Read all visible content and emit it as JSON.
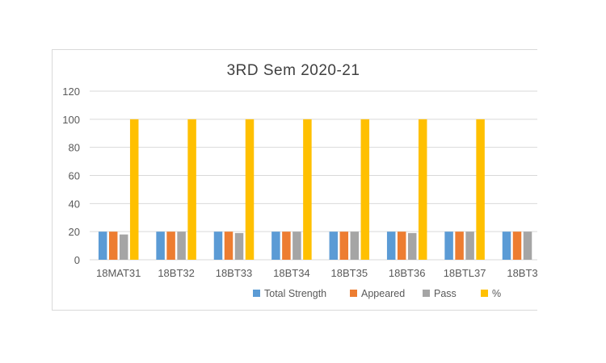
{
  "chart_data": {
    "type": "bar",
    "title": "3RD  Sem  2020-21",
    "xlabel": "",
    "ylabel": "",
    "ylim": [
      0,
      120
    ],
    "yticks": [
      0,
      20,
      40,
      60,
      80,
      100,
      120
    ],
    "grid": true,
    "legend_position": "bottom",
    "categories": [
      "18MAT31",
      "18BT32",
      "18BT33",
      "18BT34",
      "18BT35",
      "18BT36",
      "18BTL37",
      "18BT3"
    ],
    "series": [
      {
        "name": "Total Strength",
        "color": "#5b9bd5",
        "values": [
          20,
          20,
          20,
          20,
          20,
          20,
          20,
          20
        ]
      },
      {
        "name": "Appeared",
        "color": "#ed7d31",
        "values": [
          20,
          20,
          20,
          20,
          20,
          20,
          20,
          20
        ]
      },
      {
        "name": "Pass",
        "color": "#a5a5a5",
        "values": [
          18,
          20,
          19,
          20,
          20,
          19,
          20,
          20
        ]
      },
      {
        "name": "%",
        "color": "#ffc000",
        "values": [
          100,
          100,
          100,
          100,
          100,
          100,
          100,
          null
        ]
      }
    ]
  }
}
